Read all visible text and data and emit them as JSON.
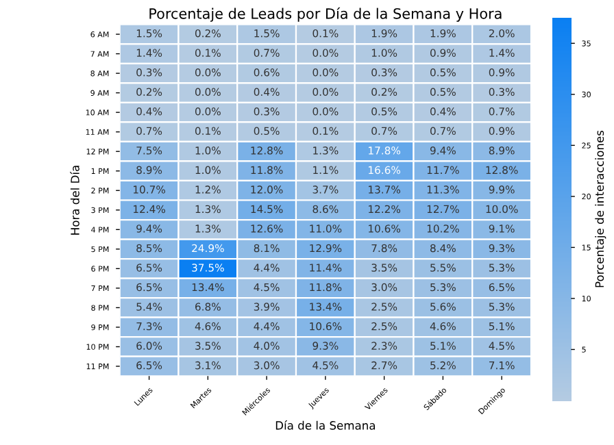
{
  "chart_data": {
    "type": "heatmap",
    "title": "Porcentaje de Leads por Día de la Semana y Hora",
    "xlabel": "Día de la Semana",
    "ylabel": "Hora del Día",
    "clabel": "Porcentaje de interacciones",
    "categories": [
      "Lunes",
      "Martes",
      "Miércoles",
      "Jueves",
      "Viernes",
      "Sábado",
      "Domingo"
    ],
    "y_categories": [
      "6 AM",
      "7 AM",
      "8 AM",
      "9 AM",
      "10 AM",
      "11 AM",
      "12 PM",
      "1 PM",
      "2 PM",
      "3 PM",
      "4 PM",
      "5 PM",
      "6 PM",
      "7 PM",
      "8 PM",
      "9 PM",
      "10 PM",
      "11 PM"
    ],
    "cells": [
      [
        1.5,
        0.2,
        1.5,
        0.1,
        1.9,
        1.9,
        2.0
      ],
      [
        1.4,
        0.1,
        0.7,
        0.0,
        1.0,
        0.9,
        1.4
      ],
      [
        0.3,
        0.0,
        0.6,
        0.0,
        0.3,
        0.5,
        0.9
      ],
      [
        0.2,
        0.0,
        0.4,
        0.0,
        0.2,
        0.5,
        0.3
      ],
      [
        0.4,
        0.0,
        0.3,
        0.0,
        0.5,
        0.4,
        0.7
      ],
      [
        0.7,
        0.1,
        0.5,
        0.1,
        0.7,
        0.7,
        0.9
      ],
      [
        7.5,
        1.0,
        12.8,
        1.3,
        17.8,
        9.4,
        8.9
      ],
      [
        8.9,
        1.0,
        11.8,
        1.1,
        16.6,
        11.7,
        12.8
      ],
      [
        10.7,
        1.2,
        12.0,
        3.7,
        13.7,
        11.3,
        9.9
      ],
      [
        12.4,
        1.3,
        14.5,
        8.6,
        12.2,
        12.7,
        10.0
      ],
      [
        9.4,
        1.3,
        12.6,
        11.0,
        10.6,
        10.2,
        9.1
      ],
      [
        8.5,
        24.9,
        8.1,
        12.9,
        7.8,
        8.4,
        9.3
      ],
      [
        6.5,
        37.5,
        4.4,
        11.4,
        3.5,
        5.5,
        5.3
      ],
      [
        6.5,
        13.4,
        4.5,
        11.8,
        3.0,
        5.3,
        6.5
      ],
      [
        5.4,
        6.8,
        3.9,
        13.4,
        2.5,
        5.6,
        5.3
      ],
      [
        7.3,
        4.6,
        4.4,
        10.6,
        2.5,
        4.6,
        5.1
      ],
      [
        6.0,
        3.5,
        4.0,
        9.3,
        2.3,
        5.1,
        4.5
      ],
      [
        6.5,
        3.1,
        3.0,
        4.5,
        2.7,
        5.2,
        7.1
      ]
    ],
    "cell_labels": [
      [
        "1.5%",
        "0.2%",
        "1.5%",
        "0.1%",
        "1.9%",
        "1.9%",
        "2.0%"
      ],
      [
        "1.4%",
        "0.1%",
        "0.7%",
        "0.0%",
        "1.0%",
        "0.9%",
        "1.4%"
      ],
      [
        "0.3%",
        "0.0%",
        "0.6%",
        "0.0%",
        "0.3%",
        "0.5%",
        "0.9%"
      ],
      [
        "0.2%",
        "0.0%",
        "0.4%",
        "0.0%",
        "0.2%",
        "0.5%",
        "0.3%"
      ],
      [
        "0.4%",
        "0.0%",
        "0.3%",
        "0.0%",
        "0.5%",
        "0.4%",
        "0.7%"
      ],
      [
        "0.7%",
        "0.1%",
        "0.5%",
        "0.1%",
        "0.7%",
        "0.7%",
        "0.9%"
      ],
      [
        "7.5%",
        "1.0%",
        "12.8%",
        "1.3%",
        "17.8%",
        "9.4%",
        "8.9%"
      ],
      [
        "8.9%",
        "1.0%",
        "11.8%",
        "1.1%",
        "16.6%",
        "11.7%",
        "12.8%"
      ],
      [
        "10.7%",
        "1.2%",
        "12.0%",
        "3.7%",
        "13.7%",
        "11.3%",
        "9.9%"
      ],
      [
        "12.4%",
        "1.3%",
        "14.5%",
        "8.6%",
        "12.2%",
        "12.7%",
        "10.0%"
      ],
      [
        "9.4%",
        "1.3%",
        "12.6%",
        "11.0%",
        "10.6%",
        "10.2%",
        "9.1%"
      ],
      [
        "8.5%",
        "24.9%",
        "8.1%",
        "12.9%",
        "7.8%",
        "8.4%",
        "9.3%"
      ],
      [
        "6.5%",
        "37.5%",
        "4.4%",
        "11.4%",
        "3.5%",
        "5.5%",
        "5.3%"
      ],
      [
        "6.5%",
        "13.4%",
        "4.5%",
        "11.8%",
        "3.0%",
        "5.3%",
        "6.5%"
      ],
      [
        "5.4%",
        "6.8%",
        "3.9%",
        "13.4%",
        "2.5%",
        "5.6%",
        "5.3%"
      ],
      [
        "7.3%",
        "4.6%",
        "4.4%",
        "10.6%",
        "2.5%",
        "4.6%",
        "5.1%"
      ],
      [
        "6.0%",
        "3.5%",
        "4.0%",
        "9.3%",
        "2.3%",
        "5.1%",
        "4.5%"
      ],
      [
        "6.5%",
        "3.1%",
        "3.0%",
        "4.5%",
        "2.7%",
        "5.2%",
        "7.1%"
      ]
    ],
    "clim": [
      0,
      37.5
    ],
    "cticks": [
      5,
      10,
      15,
      20,
      25,
      30,
      35
    ],
    "colors": [
      "#b4cbe2",
      "#0a7ff2"
    ]
  }
}
